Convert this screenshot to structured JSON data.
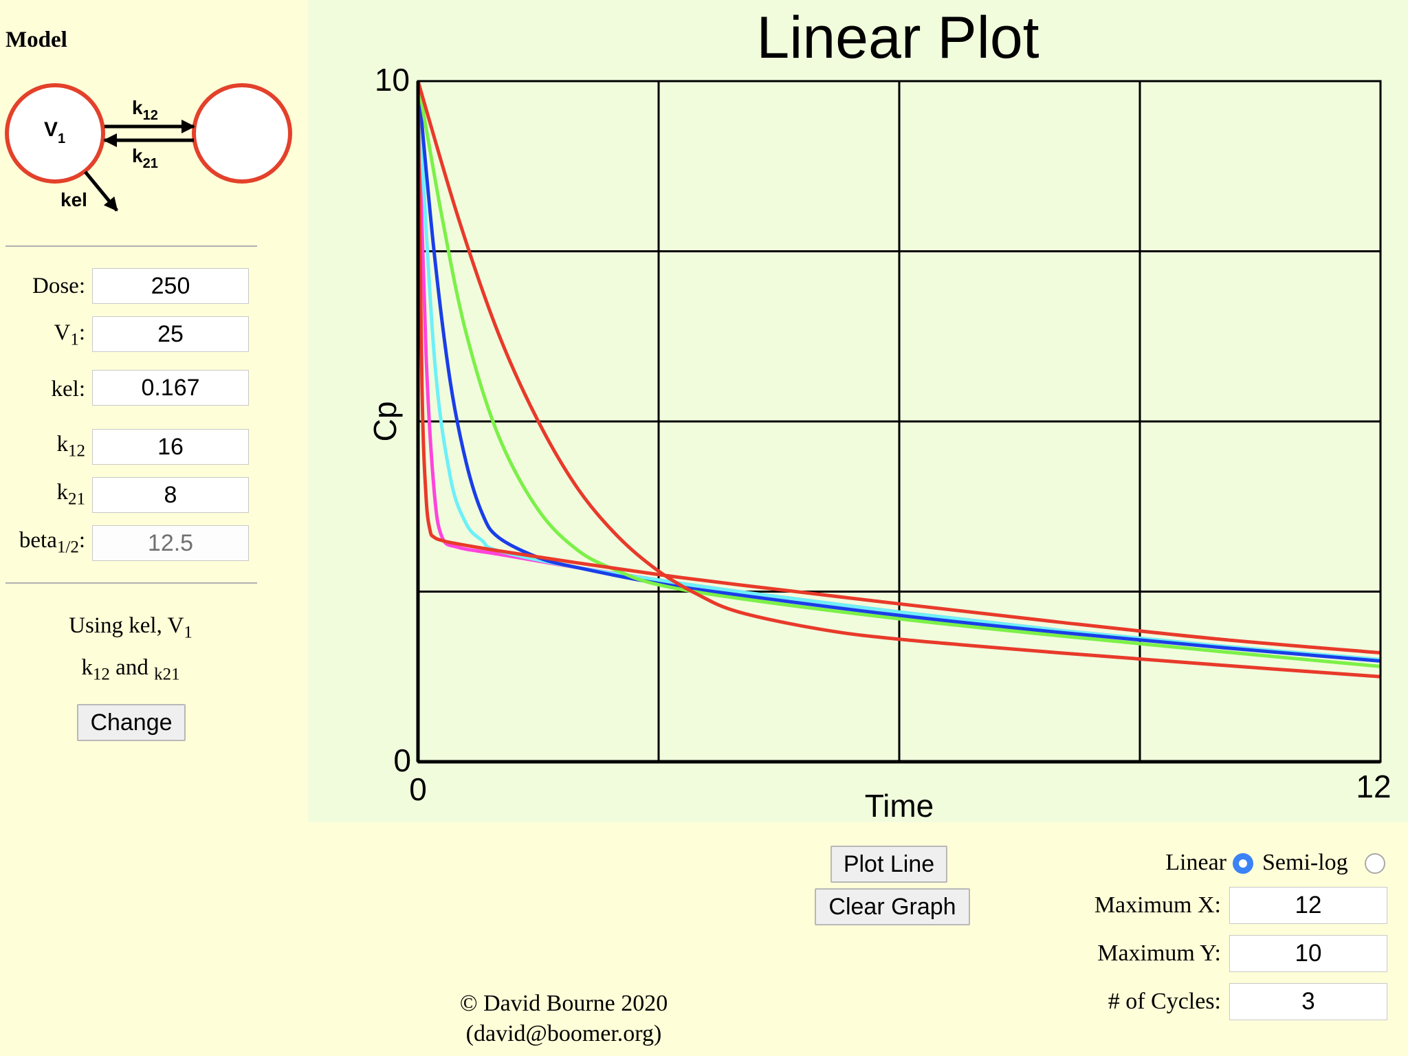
{
  "model": {
    "title": "Model",
    "diagram": {
      "central_label": "V",
      "central_sub": "1",
      "forward_label": "k",
      "forward_sub": "12",
      "reverse_label": "k",
      "reverse_sub": "21",
      "elimination_label": "kel"
    }
  },
  "params": {
    "dose": {
      "label": "Dose:",
      "value": "250"
    },
    "v1": {
      "label": "V",
      "sub": "1",
      "suffix": ":",
      "value": "25"
    },
    "kel": {
      "label": "kel:",
      "value": "0.167"
    },
    "k12": {
      "label": "k",
      "sub": "12",
      "value": "16"
    },
    "k21": {
      "label": "k",
      "sub": "21",
      "value": "8"
    },
    "beta_half": {
      "label": "beta",
      "sub": "1/2",
      "suffix": ":",
      "value": "12.5"
    }
  },
  "using_note": {
    "line1": "Using kel, V",
    "line1_sub": "1",
    "line2a": "k",
    "line2a_sub": "12",
    "line2b": " and ",
    "line2c_sub": "k21"
  },
  "change_button": "Change",
  "plot": {
    "title": "Linear Plot"
  },
  "chart_data": {
    "type": "line",
    "title": "Linear Plot",
    "xlabel": "Time",
    "ylabel": "Cp",
    "xlim": [
      0,
      12
    ],
    "ylim": [
      0,
      10
    ],
    "x_ticks": [
      "0",
      "12"
    ],
    "y_ticks": [
      "0",
      "10"
    ],
    "grid": true,
    "series": [
      {
        "color": "#ff44dd",
        "x": [
          0,
          0.1,
          0.2,
          0.3,
          0.5,
          1,
          2,
          3,
          4,
          6,
          8,
          10,
          12
        ],
        "y": [
          10,
          6.0,
          4.0,
          3.3,
          3.15,
          3.05,
          2.85,
          2.67,
          2.5,
          2.2,
          1.93,
          1.7,
          1.5
        ]
      },
      {
        "color": "#6ef0f8",
        "x": [
          0,
          0.2,
          0.4,
          0.6,
          0.8,
          1,
          2,
          3,
          4,
          6,
          8,
          10,
          12
        ],
        "y": [
          10,
          6.0,
          4.2,
          3.5,
          3.25,
          3.1,
          2.85,
          2.67,
          2.5,
          2.2,
          1.93,
          1.7,
          1.5
        ]
      },
      {
        "color": "#1a3ee8",
        "x": [
          0,
          0.2,
          0.4,
          0.6,
          0.8,
          1,
          1.5,
          2,
          3,
          4,
          6,
          8,
          10,
          12
        ],
        "y": [
          10,
          7.5,
          5.6,
          4.4,
          3.65,
          3.3,
          3.0,
          2.85,
          2.62,
          2.45,
          2.15,
          1.9,
          1.68,
          1.48
        ]
      },
      {
        "color": "#7cf048",
        "x": [
          0,
          0.3,
          0.6,
          1,
          1.5,
          2,
          2.5,
          3,
          4,
          6,
          8,
          10,
          12
        ],
        "y": [
          10,
          8.0,
          6.3,
          4.8,
          3.7,
          3.1,
          2.8,
          2.6,
          2.4,
          2.1,
          1.85,
          1.62,
          1.4
        ]
      },
      {
        "color": "#e83a2a",
        "x": [
          0,
          0.5,
          1,
          1.5,
          2,
          2.5,
          3,
          3.5,
          4,
          5,
          6,
          8,
          10,
          12
        ],
        "y": [
          10,
          8.0,
          6.3,
          5.0,
          4.0,
          3.3,
          2.8,
          2.45,
          2.2,
          1.95,
          1.8,
          1.6,
          1.42,
          1.25
        ]
      },
      {
        "color": "#e83a2a",
        "x": [
          0,
          0.05,
          0.1,
          0.15,
          0.2,
          0.3,
          0.5,
          1,
          2,
          3,
          4,
          6,
          8,
          10,
          12
        ],
        "y": [
          10,
          5.5,
          3.9,
          3.4,
          3.3,
          3.25,
          3.2,
          3.1,
          2.92,
          2.75,
          2.6,
          2.32,
          2.05,
          1.8,
          1.6
        ]
      }
    ]
  },
  "controls": {
    "plot_line": "Plot Line",
    "clear_graph": "Clear Graph",
    "linear_label": "Linear",
    "semilog_label": "Semi-log",
    "scale_selected": "Linear",
    "max_x": {
      "label": "Maximum X:",
      "value": "12"
    },
    "max_y": {
      "label": "Maximum Y:",
      "value": "10"
    },
    "cycles": {
      "label": "# of Cycles:",
      "value": "3"
    }
  },
  "footer": {
    "copyright": "© David Bourne 2020",
    "email": "(david@boomer.org)"
  }
}
